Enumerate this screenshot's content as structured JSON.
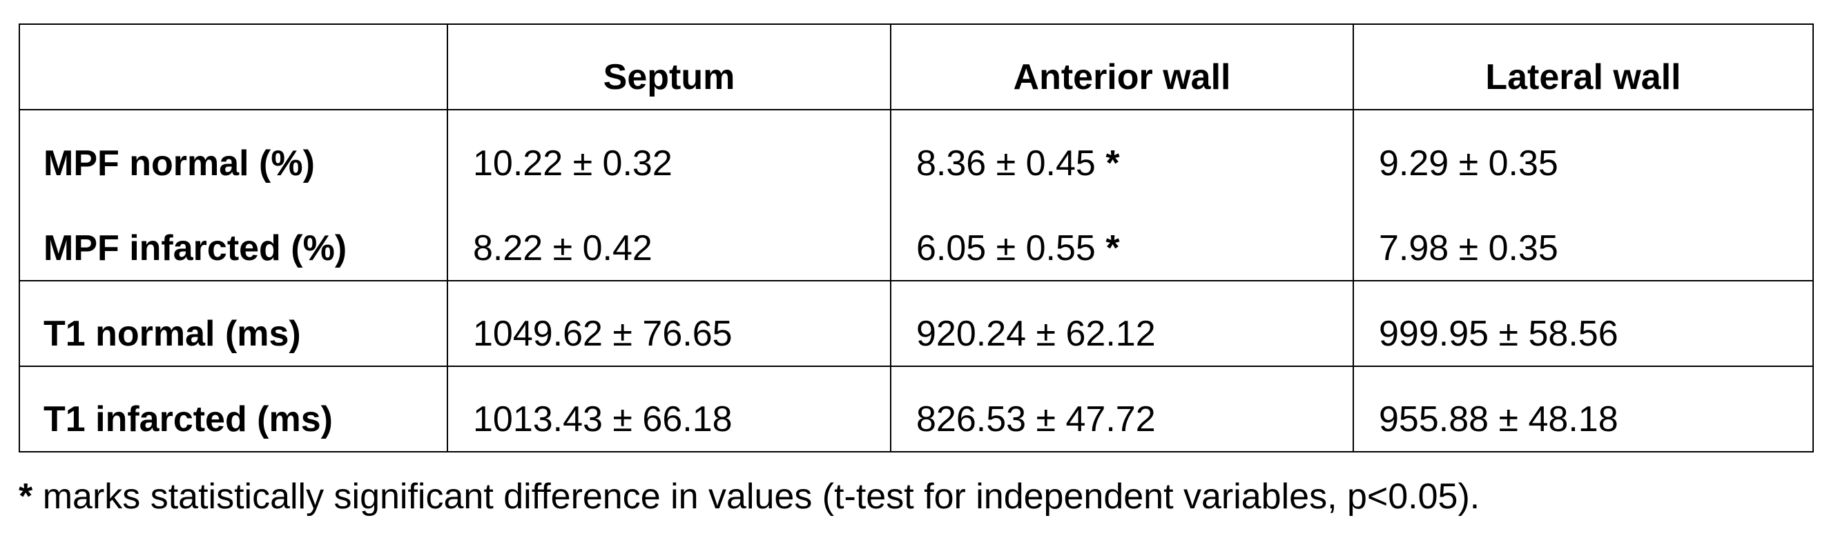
{
  "table": {
    "columns": [
      "Septum",
      "Anterior wall",
      "Lateral wall"
    ],
    "rows": [
      {
        "label": "MPF normal (%)",
        "cells": [
          {
            "value": "10.22 ± 0.32"
          },
          {
            "value": "8.36 ± 0.45",
            "mark": "*"
          },
          {
            "value": "9.29 ± 0.35"
          }
        ]
      },
      {
        "label": "MPF infarcted (%)",
        "cells": [
          {
            "value": "8.22 ± 0.42"
          },
          {
            "value": "6.05 ± 0.55",
            "mark": "*"
          },
          {
            "value": "7.98 ± 0.35"
          }
        ]
      },
      {
        "label": "T1 normal (ms)",
        "cells": [
          {
            "value": "1049.62 ± 76.65"
          },
          {
            "value": "920.24 ± 62.12"
          },
          {
            "value": "999.95 ± 58.56"
          }
        ]
      },
      {
        "label": "T1 infarcted (ms)",
        "cells": [
          {
            "value": "1013.43 ± 66.18"
          },
          {
            "value": "826.53 ± 47.72"
          },
          {
            "value": "955.88 ± 48.18"
          }
        ]
      }
    ]
  },
  "footnote": {
    "mark": "*",
    "text": "marks statistically significant difference in values (t-test for independent variables, p<0.05)."
  }
}
